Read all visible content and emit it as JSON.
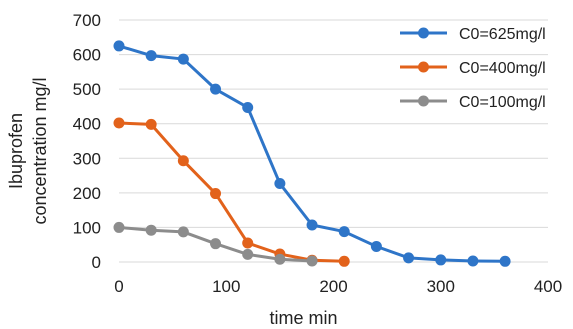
{
  "chart_data": {
    "type": "line",
    "xlabel": "time min",
    "ylabel": [
      "Ibuprofen",
      "concentration mg/l"
    ],
    "xlim": [
      0,
      400
    ],
    "ylim": [
      0,
      700
    ],
    "xticks": [
      0,
      100,
      200,
      300,
      400
    ],
    "yticks": [
      0,
      100,
      200,
      300,
      400,
      500,
      600,
      700
    ],
    "grid": "horizontal",
    "legend_position": "top-right",
    "series": [
      {
        "name": "C0=625mg/l",
        "color": "#2E75C8",
        "x": [
          0,
          30,
          60,
          90,
          120,
          150,
          180,
          210,
          240,
          270,
          300,
          330,
          360
        ],
        "y": [
          625,
          597,
          587,
          500,
          447,
          227,
          107,
          88,
          45,
          12,
          6,
          3,
          2
        ]
      },
      {
        "name": "C0=400mg/l",
        "color": "#E2621B",
        "x": [
          0,
          30,
          60,
          90,
          120,
          150,
          180,
          210
        ],
        "y": [
          402,
          398,
          293,
          198,
          55,
          23,
          5,
          2
        ]
      },
      {
        "name": "C0=100mg/l",
        "color": "#8C8C8C",
        "x": [
          0,
          30,
          60,
          90,
          120,
          150,
          180
        ],
        "y": [
          100,
          92,
          87,
          53,
          22,
          8,
          3
        ]
      }
    ]
  }
}
